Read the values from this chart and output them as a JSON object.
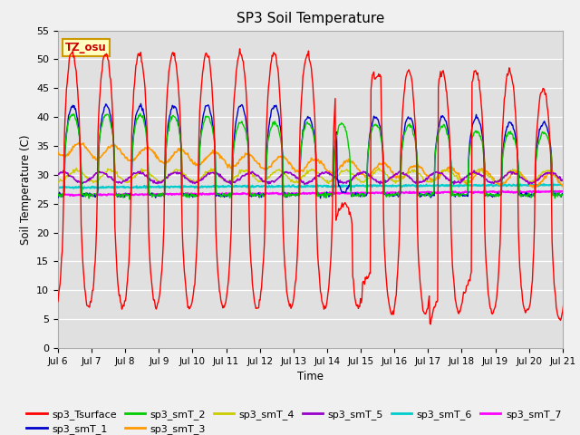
{
  "title": "SP3 Soil Temperature",
  "xlabel": "Time",
  "ylabel": "Soil Temperature (C)",
  "annotation": "TZ_osu",
  "ylim": [
    0,
    55
  ],
  "figsize": [
    6.4,
    4.8
  ],
  "dpi": 100,
  "fig_facecolor": "#f0f0f0",
  "ax_facecolor": "#e0e0e0",
  "series_colors": {
    "sp3_Tsurface": "#ff0000",
    "sp3_smT_1": "#0000cc",
    "sp3_smT_2": "#00cc00",
    "sp3_smT_3": "#ff9900",
    "sp3_smT_4": "#cccc00",
    "sp3_smT_5": "#9900cc",
    "sp3_smT_6": "#00cccc",
    "sp3_smT_7": "#ff00ff"
  },
  "x_ticks": [
    "Jul 6",
    "Jul 7",
    "Jul 8",
    "Jul 9",
    "Jul 10",
    "Jul 11",
    "Jul 12",
    "Jul 13",
    "Jul 14",
    "Jul 15",
    "Jul 16",
    "Jul 17",
    "Jul 18",
    "Jul 19",
    "Jul 20",
    "Jul 21"
  ],
  "y_ticks": [
    0,
    5,
    10,
    15,
    20,
    25,
    30,
    35,
    40,
    45,
    50,
    55
  ]
}
